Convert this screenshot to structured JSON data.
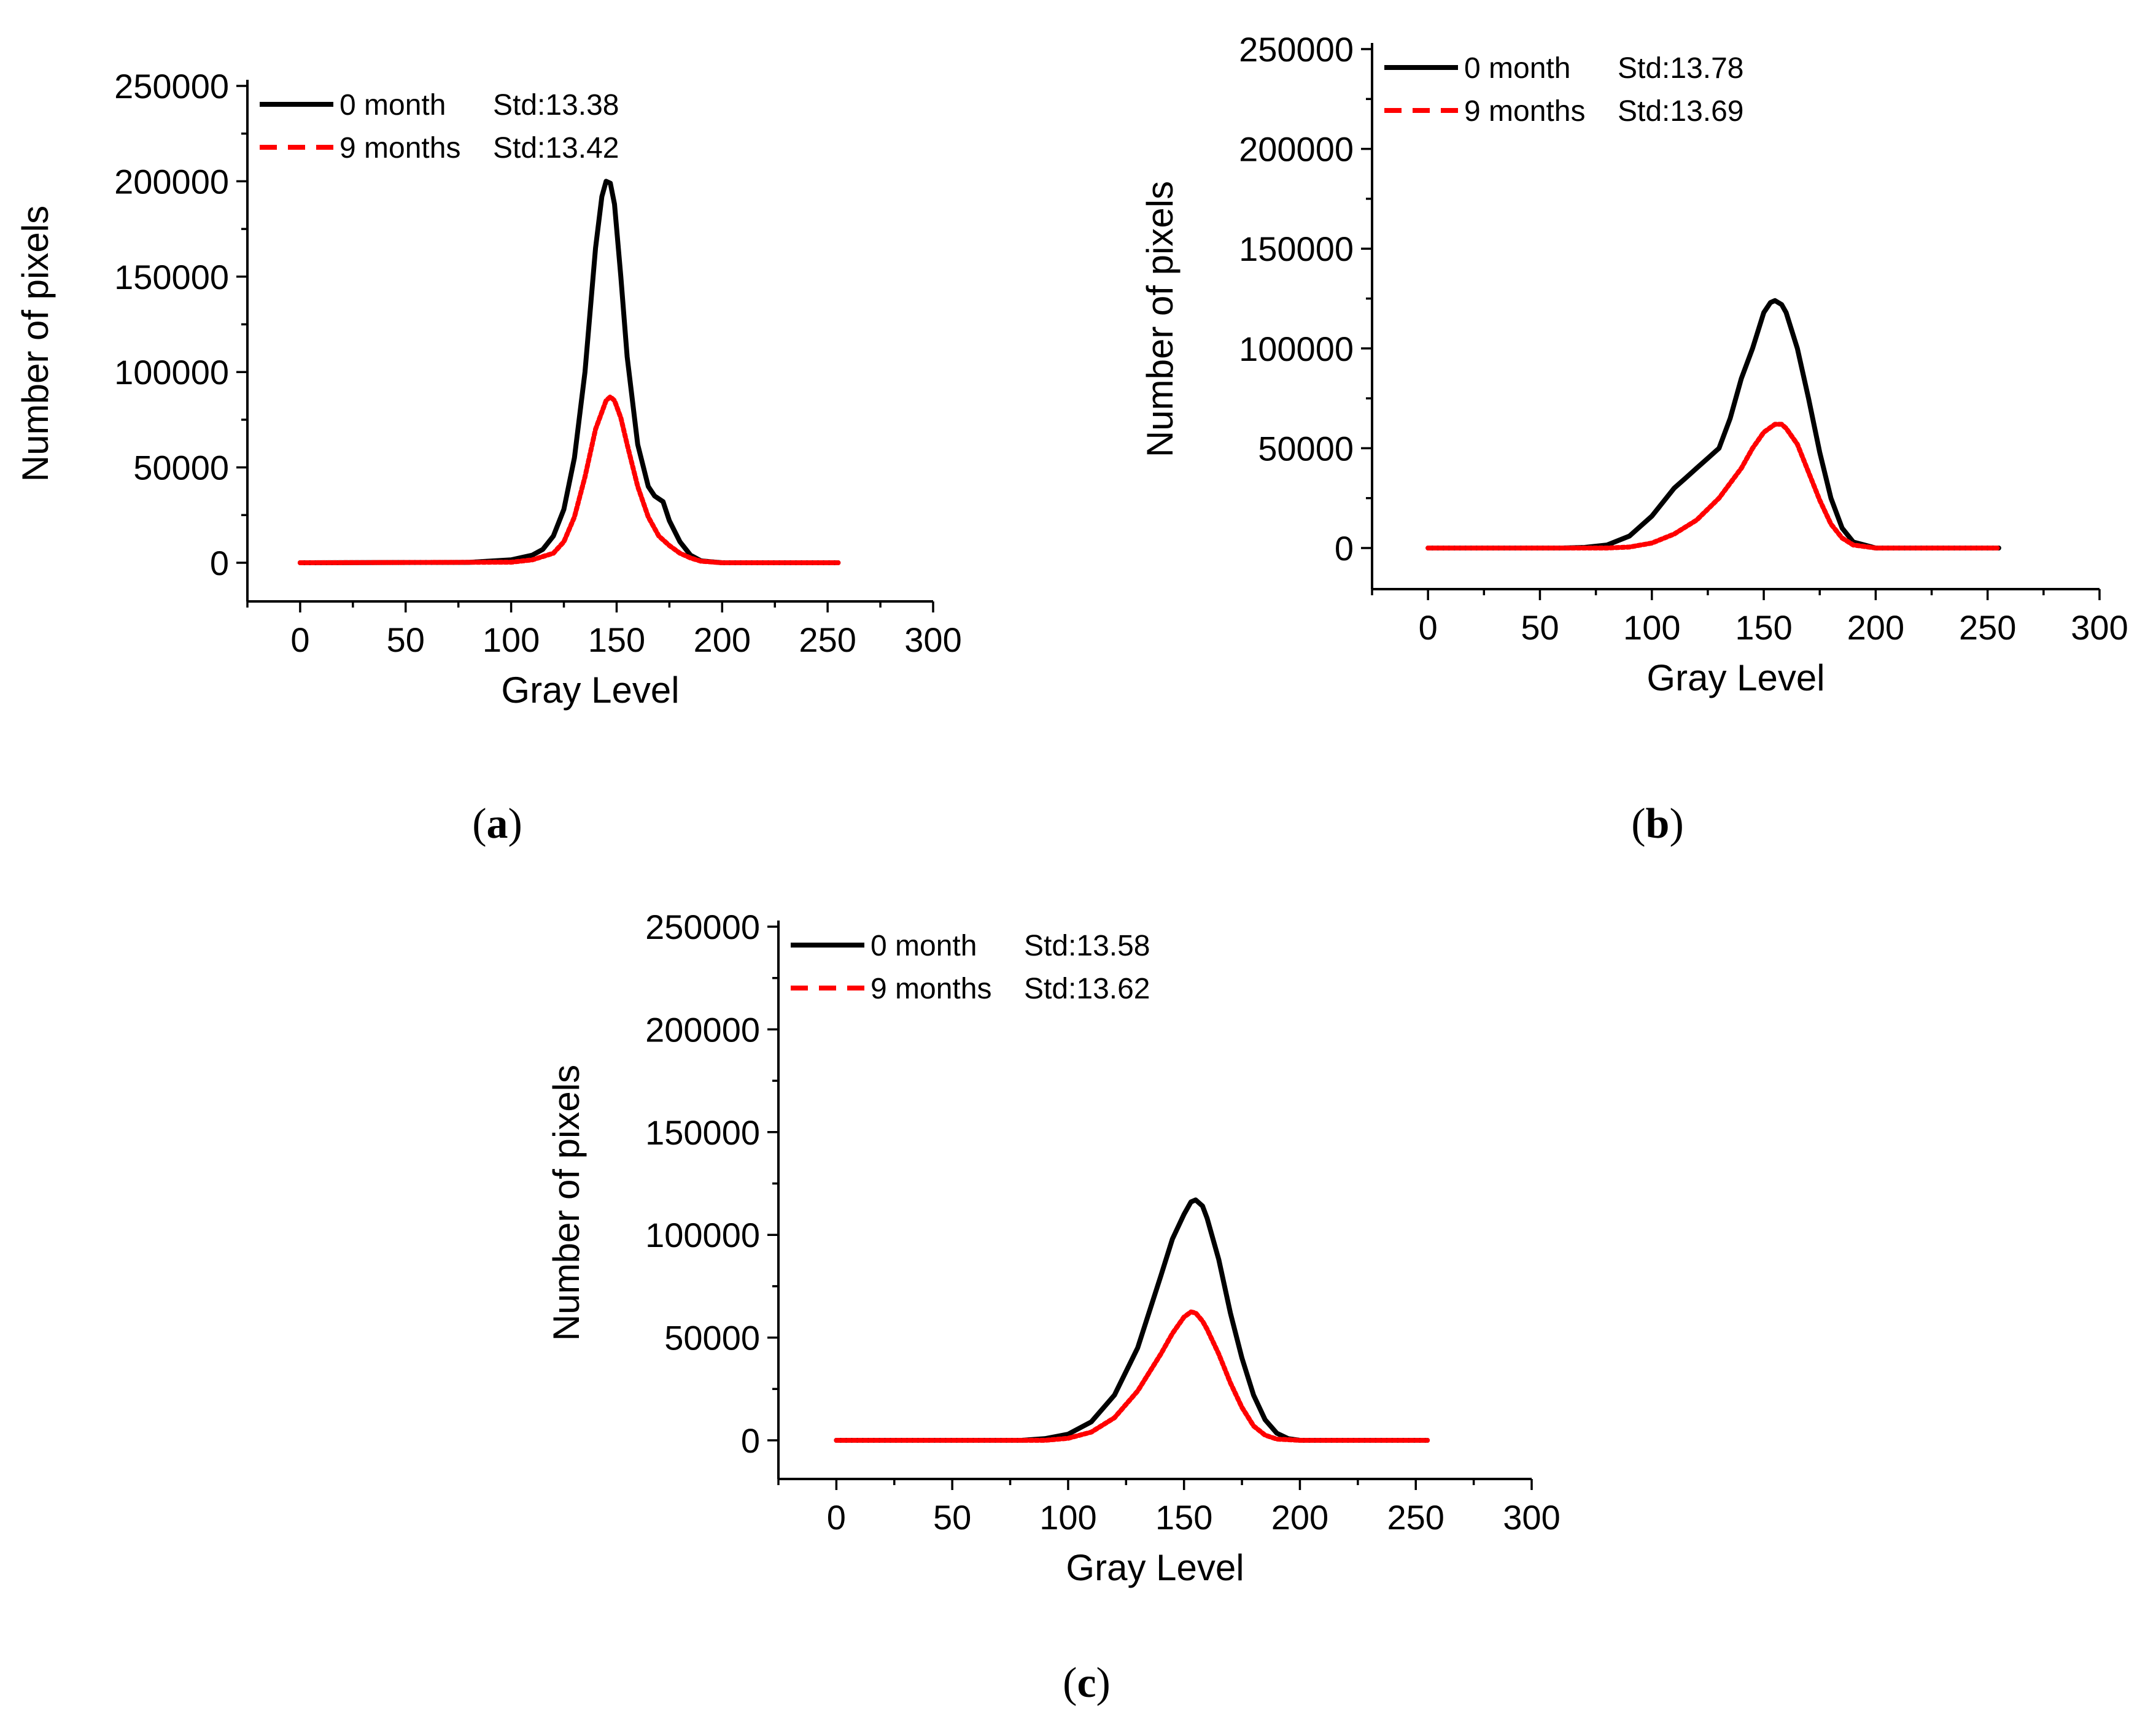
{
  "figure": {
    "panels": [
      "a",
      "b",
      "c"
    ]
  },
  "chart_data": [
    {
      "id": "a",
      "type": "line",
      "caption_letter": "a",
      "xlabel": "Gray Level",
      "ylabel": "Number of pixels",
      "xlim": [
        -25,
        300
      ],
      "ylim": [
        -20000,
        250000
      ],
      "xticks": [
        0,
        50,
        100,
        150,
        200,
        250,
        300
      ],
      "yticks": [
        0,
        50000,
        100000,
        150000,
        200000,
        250000
      ],
      "legend_position": "top-left",
      "series": [
        {
          "name": "0 month",
          "std_label": "Std:13.38",
          "color": "#000000",
          "dash": "solid",
          "x": [
            0,
            80,
            100,
            110,
            115,
            120,
            125,
            130,
            135,
            140,
            143,
            145,
            147,
            149,
            152,
            155,
            160,
            165,
            168,
            172,
            175,
            180,
            185,
            190,
            200,
            255
          ],
          "y": [
            0,
            200,
            1500,
            4000,
            7000,
            14000,
            28000,
            55000,
            100000,
            165000,
            192000,
            200000,
            199000,
            188000,
            150000,
            108000,
            62000,
            40000,
            35000,
            32000,
            22000,
            11000,
            4000,
            1000,
            0,
            0
          ]
        },
        {
          "name": "9 months",
          "std_label": "Std:13.42",
          "color": "#ff0000",
          "dash": "dashed",
          "x": [
            0,
            100,
            110,
            120,
            125,
            130,
            135,
            140,
            145,
            147,
            149,
            152,
            155,
            160,
            165,
            170,
            175,
            180,
            185,
            190,
            200,
            255
          ],
          "y": [
            0,
            300,
            1500,
            5000,
            11000,
            24000,
            45000,
            70000,
            85000,
            87000,
            85000,
            76000,
            62000,
            40000,
            24000,
            14000,
            9000,
            5000,
            2500,
            800,
            0,
            0
          ]
        }
      ]
    },
    {
      "id": "b",
      "type": "line",
      "caption_letter": "b",
      "xlabel": "Gray Level",
      "ylabel": "Number of pixels",
      "xlim": [
        -25,
        300
      ],
      "ylim": [
        -20000,
        250000
      ],
      "xticks": [
        0,
        50,
        100,
        150,
        200,
        250,
        300
      ],
      "yticks": [
        0,
        50000,
        100000,
        150000,
        200000,
        250000
      ],
      "legend_position": "top-left",
      "series": [
        {
          "name": "0 month",
          "std_label": "Std:13.78",
          "color": "#000000",
          "dash": "solid",
          "x": [
            0,
            60,
            70,
            80,
            90,
            100,
            110,
            115,
            120,
            125,
            130,
            135,
            140,
            145,
            150,
            153,
            155,
            158,
            160,
            165,
            170,
            175,
            180,
            185,
            190,
            200,
            255
          ],
          "y": [
            0,
            0,
            300,
            1500,
            6000,
            16000,
            30000,
            35000,
            40000,
            45000,
            50000,
            65000,
            85000,
            100000,
            118000,
            123000,
            124000,
            122000,
            118000,
            100000,
            75000,
            48000,
            25000,
            10000,
            3000,
            0,
            0
          ]
        },
        {
          "name": "9 months",
          "std_label": "Std:13.69",
          "color": "#ff0000",
          "dash": "dashed",
          "x": [
            0,
            80,
            90,
            100,
            110,
            120,
            130,
            140,
            145,
            150,
            155,
            158,
            160,
            165,
            170,
            175,
            180,
            185,
            190,
            200,
            255
          ],
          "y": [
            0,
            0,
            500,
            2500,
            7000,
            14000,
            25000,
            40000,
            50000,
            58000,
            62000,
            62000,
            60000,
            52000,
            38000,
            24000,
            12000,
            5000,
            1500,
            0,
            0
          ]
        }
      ]
    },
    {
      "id": "c",
      "type": "line",
      "caption_letter": "c",
      "xlabel": "Gray Level",
      "ylabel": "Number of pixels",
      "xlim": [
        -25,
        300
      ],
      "ylim": [
        -20000,
        250000
      ],
      "xticks": [
        0,
        50,
        100,
        150,
        200,
        250,
        300
      ],
      "yticks": [
        0,
        50000,
        100000,
        150000,
        200000,
        250000
      ],
      "legend_position": "top-left",
      "series": [
        {
          "name": "0 month",
          "std_label": "Std:13.58",
          "color": "#000000",
          "dash": "solid",
          "x": [
            0,
            80,
            90,
            100,
            110,
            120,
            130,
            140,
            145,
            150,
            153,
            155,
            158,
            160,
            165,
            170,
            175,
            180,
            185,
            190,
            195,
            200,
            255
          ],
          "y": [
            0,
            0,
            800,
            3000,
            9000,
            22000,
            45000,
            80000,
            98000,
            110000,
            116000,
            117000,
            114000,
            108000,
            88000,
            62000,
            40000,
            22000,
            10000,
            3500,
            800,
            0,
            0
          ]
        },
        {
          "name": "9 months",
          "std_label": "Std:13.62",
          "color": "#ff0000",
          "dash": "dashed",
          "x": [
            0,
            90,
            100,
            110,
            120,
            130,
            140,
            145,
            150,
            153,
            155,
            158,
            160,
            165,
            170,
            175,
            180,
            185,
            190,
            200,
            255
          ],
          "y": [
            0,
            0,
            1000,
            4000,
            11000,
            24000,
            42000,
            52000,
            60000,
            62500,
            62000,
            58000,
            54000,
            42000,
            28000,
            16000,
            7000,
            2500,
            600,
            0,
            0
          ]
        }
      ]
    }
  ]
}
